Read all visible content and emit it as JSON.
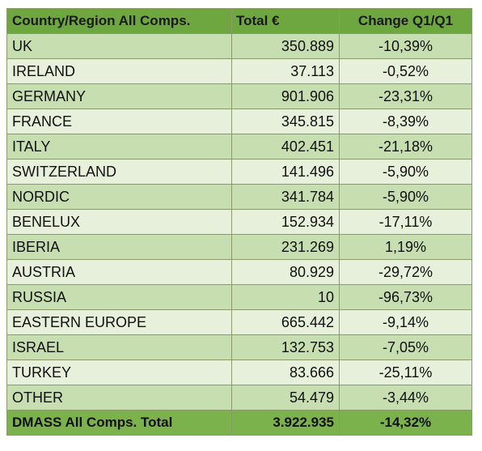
{
  "chart_data": {
    "type": "table",
    "columns": [
      "Country/Region All Comps.",
      "Total €",
      "Change Q1/Q1"
    ],
    "rows": [
      {
        "name": "UK",
        "total": "350.889",
        "change": "-10,39%"
      },
      {
        "name": "IRELAND",
        "total": "37.113",
        "change": "-0,52%"
      },
      {
        "name": "GERMANY",
        "total": "901.906",
        "change": "-23,31%"
      },
      {
        "name": "FRANCE",
        "total": "345.815",
        "change": "-8,39%"
      },
      {
        "name": "ITALY",
        "total": "402.451",
        "change": "-21,18%"
      },
      {
        "name": "SWITZERLAND",
        "total": "141.496",
        "change": "-5,90%"
      },
      {
        "name": "NORDIC",
        "total": "341.784",
        "change": "-5,90%"
      },
      {
        "name": "BENELUX",
        "total": "152.934",
        "change": "-17,11%"
      },
      {
        "name": "IBERIA",
        "total": "231.269",
        "change": "1,19%"
      },
      {
        "name": "AUSTRIA",
        "total": "80.929",
        "change": "-29,72%"
      },
      {
        "name": "RUSSIA",
        "total": "10",
        "change": "-96,73%"
      },
      {
        "name": "EASTERN EUROPE",
        "total": "665.442",
        "change": "-9,14%"
      },
      {
        "name": "ISRAEL",
        "total": "132.753",
        "change": "-7,05%"
      },
      {
        "name": "TURKEY",
        "total": "83.666",
        "change": "-25,11%"
      },
      {
        "name": "OTHER",
        "total": "54.479",
        "change": "-3,44%"
      }
    ],
    "total_row": {
      "name": "DMASS All Comps. Total",
      "total": "3.922.935",
      "change": "-14,32%"
    },
    "colors": {
      "header": "#6ea63f",
      "row_odd": "#c7dfb0",
      "row_even": "#e6f0da",
      "total_row": "#7bb24b",
      "border": "#8a9a6a"
    }
  }
}
